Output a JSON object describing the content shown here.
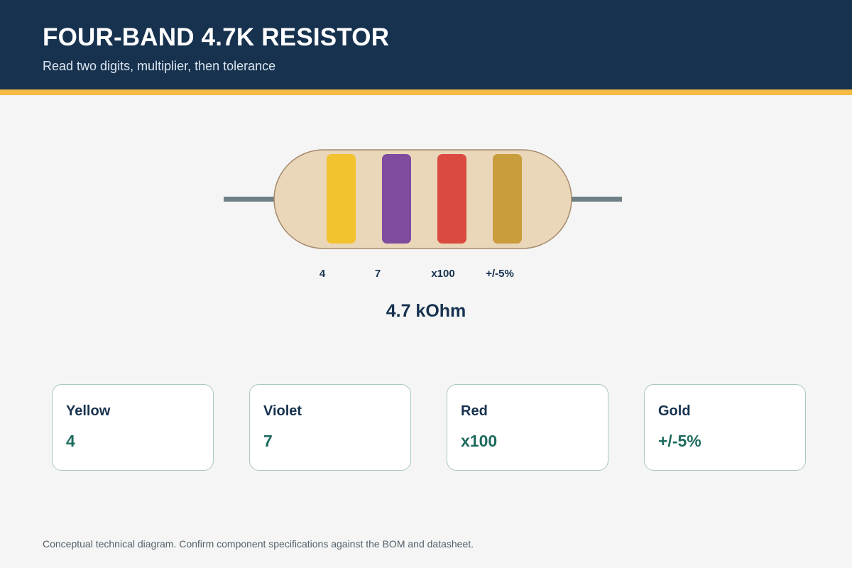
{
  "header": {
    "title": "FOUR-BAND 4.7K RESISTOR",
    "subtitle": "Read two digits, multiplier, then tolerance"
  },
  "resistor": {
    "body_color": "#ead6b9",
    "outline_color": "#a6896d",
    "lead_color": "#6e7f86",
    "bands": [
      {
        "color_name": "Yellow",
        "hex": "#f2c22f",
        "label": "4"
      },
      {
        "color_name": "Violet",
        "hex": "#7e4b9e",
        "label": "7"
      },
      {
        "color_name": "Red",
        "hex": "#db4a40",
        "label": "x100"
      },
      {
        "color_name": "Gold",
        "hex": "#c99d3c",
        "label": "+/-5%"
      }
    ]
  },
  "result": {
    "value": "4.7 kOhm"
  },
  "cards": [
    {
      "name": "Yellow",
      "value": "4"
    },
    {
      "name": "Violet",
      "value": "7"
    },
    {
      "name": "Red",
      "value": "x100"
    },
    {
      "name": "Gold",
      "value": "+/-5%"
    }
  ],
  "colors": {
    "header_bg": "#17324f",
    "accent": "#f7bb43",
    "card_value": "#1e6b5e"
  },
  "footnote": "Conceptual technical diagram. Confirm component specifications against the BOM and datasheet."
}
